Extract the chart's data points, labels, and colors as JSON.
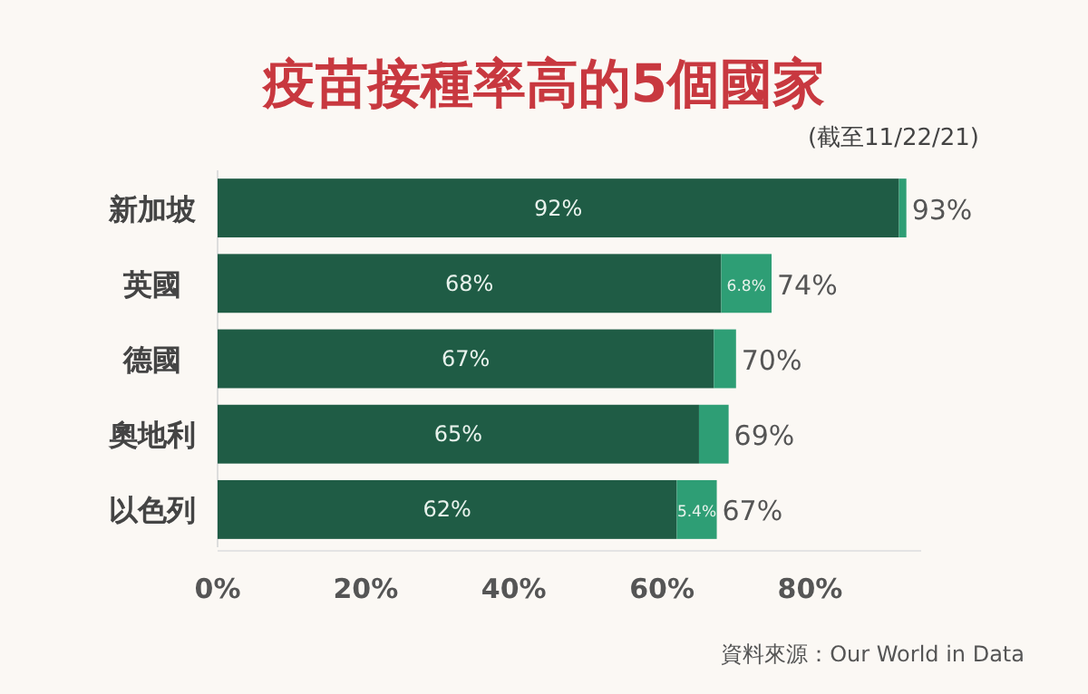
{
  "chart_data": {
    "type": "bar",
    "orientation": "horizontal",
    "stacked": true,
    "title": "疫苗接種率高的5個國家",
    "subtitle": "(截至11/22/21)",
    "categories": [
      "新加坡",
      "英國",
      "德國",
      "奧地利",
      "以色列"
    ],
    "series": [
      {
        "color": "#1f5c45",
        "values": [
          92,
          68,
          67,
          65,
          62
        ],
        "value_labels": [
          "92%",
          "68%",
          "67%",
          "65%",
          "62%"
        ]
      },
      {
        "color": "#2e9e75",
        "values": [
          1,
          6.8,
          3,
          4,
          5.4
        ],
        "value_labels": [
          null,
          "6.8%",
          null,
          null,
          "5.4%"
        ]
      }
    ],
    "totals": [
      "93%",
      "74%",
      "70%",
      "69%",
      "67%"
    ],
    "xlim": [
      0,
      95
    ],
    "xticks": [
      {
        "value": 0,
        "label": "0%"
      },
      {
        "value": 20,
        "label": "20%"
      },
      {
        "value": 40,
        "label": "40%"
      },
      {
        "value": 60,
        "label": "60%"
      },
      {
        "value": 80,
        "label": "80%"
      }
    ],
    "annotations": [
      "資料來源：Our World in Data"
    ]
  }
}
